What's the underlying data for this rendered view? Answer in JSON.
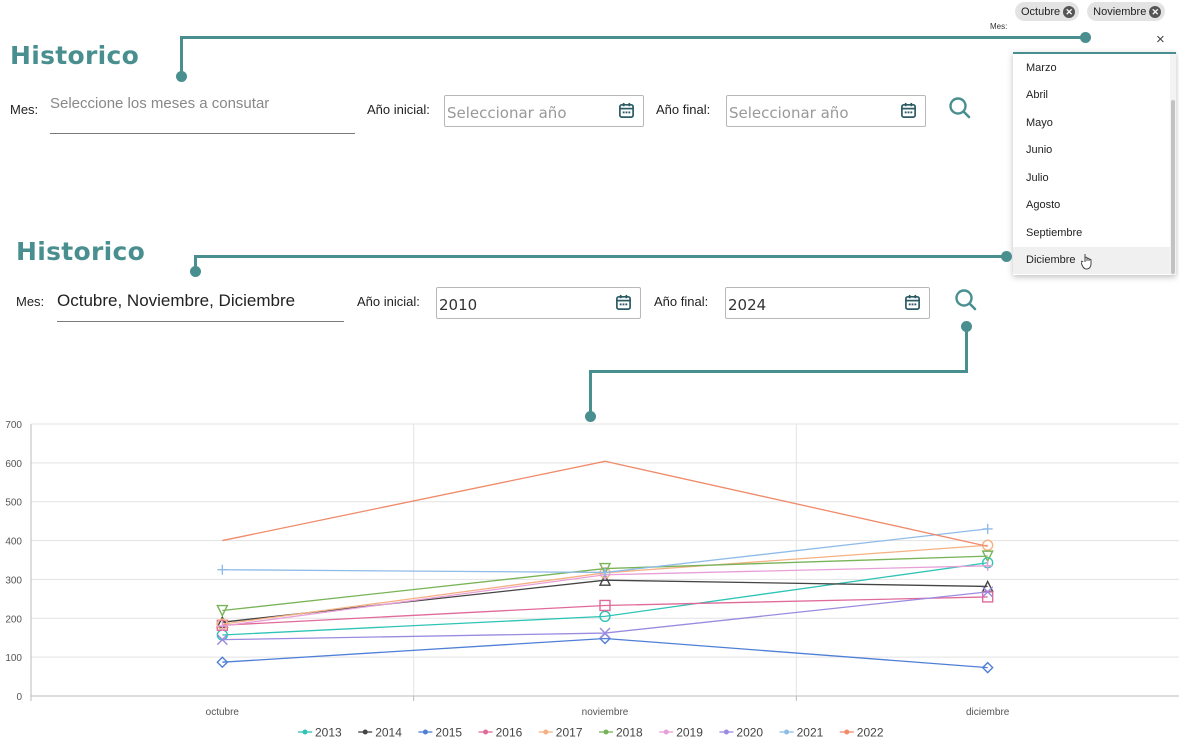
{
  "top": {
    "title": "Historico",
    "mes_label": "Mes:",
    "mes_placeholder": "Seleccione los meses a consutar",
    "ano_inicial_label": "Año inicial:",
    "ano_inicial_placeholder": "Seleccionar año",
    "ano_final_label": "Año final:",
    "ano_final_placeholder": "Seleccionar año"
  },
  "popup": {
    "mes_label": "Mes:",
    "chips": [
      "Octubre",
      "Noviembre"
    ],
    "clear_icon": "×",
    "options": [
      "Marzo",
      "Abril",
      "Mayo",
      "Junio",
      "Julio",
      "Agosto",
      "Septiembre",
      "Diciembre"
    ],
    "highlighted": "Diciembre"
  },
  "bottom": {
    "title": "Historico",
    "mes_label": "Mes:",
    "mes_value": "Octubre, Noviembre, Diciembre",
    "ano_inicial_label": "Año inicial:",
    "ano_inicial_value": "2010",
    "ano_final_label": "Año final:",
    "ano_final_value": "2024"
  },
  "colors": {
    "accent": "#4a8f8f"
  },
  "chart_data": {
    "type": "line",
    "categories": [
      "octubre",
      "noviembre",
      "diciembre"
    ],
    "ylim": [
      0,
      700
    ],
    "yticks": [
      0,
      100,
      200,
      300,
      400,
      500,
      600,
      700
    ],
    "legend_position": "bottom",
    "grid": true,
    "series": [
      {
        "name": "2013",
        "values": [
          157,
          205,
          343
        ],
        "color": "#2ec4b6",
        "marker": "circle"
      },
      {
        "name": "2014",
        "values": [
          190,
          298,
          282
        ],
        "color": "#444444",
        "marker": "triangle"
      },
      {
        "name": "2015",
        "values": [
          87,
          148,
          73
        ],
        "color": "#4f7fd6",
        "marker": "diamond"
      },
      {
        "name": "2016",
        "values": [
          182,
          233,
          255
        ],
        "color": "#e06a9a",
        "marker": "square"
      },
      {
        "name": "2017",
        "values": [
          185,
          317,
          388
        ],
        "color": "#f4b183",
        "marker": "circle"
      },
      {
        "name": "2018",
        "values": [
          220,
          328,
          360
        ],
        "color": "#79b358",
        "marker": "triangle-down"
      },
      {
        "name": "2019",
        "values": [
          180,
          312,
          335
        ],
        "color": "#e89fd8",
        "marker": "plus"
      },
      {
        "name": "2020",
        "values": [
          145,
          162,
          268
        ],
        "color": "#9b8ae0",
        "marker": "cross"
      },
      {
        "name": "2021",
        "values": [
          325,
          318,
          430
        ],
        "color": "#8fbbe8",
        "marker": "plus"
      },
      {
        "name": "2022",
        "values": [
          400,
          604,
          385
        ],
        "color": "#f08a6a",
        "marker": "none"
      }
    ]
  }
}
